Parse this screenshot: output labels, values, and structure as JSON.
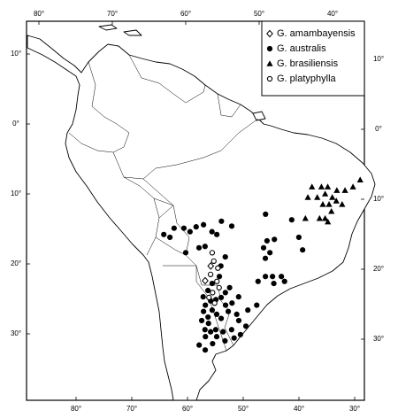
{
  "map": {
    "graticule": {
      "top": [
        {
          "value": -80,
          "label": "80°"
        },
        {
          "value": -70,
          "label": "70°"
        },
        {
          "value": -60,
          "label": "60°"
        },
        {
          "value": -50,
          "label": "50°"
        },
        {
          "value": -40,
          "label": "40°"
        }
      ],
      "bottom": [
        {
          "value": -80,
          "label": "80°"
        },
        {
          "value": -70,
          "label": "70°"
        },
        {
          "value": -60,
          "label": "60°"
        },
        {
          "value": -50,
          "label": "50°"
        },
        {
          "value": -40,
          "label": "40°"
        },
        {
          "value": -30,
          "label": "30°"
        }
      ],
      "left": [
        {
          "value": 10,
          "label": "10°"
        },
        {
          "value": 0,
          "label": "0°"
        },
        {
          "value": -10,
          "label": "10°"
        },
        {
          "value": -20,
          "label": "20°"
        },
        {
          "value": -30,
          "label": "30°"
        }
      ],
      "right": [
        {
          "value": 10,
          "label": "10°"
        },
        {
          "value": 0,
          "label": "0°"
        },
        {
          "value": -10,
          "label": "10°"
        },
        {
          "value": -20,
          "label": "20°"
        },
        {
          "value": -30,
          "label": "30°"
        }
      ]
    },
    "series": [
      {
        "name": "G. amambayensis",
        "marker": "diamond",
        "points": [
          [
            -56.7,
            -22.4
          ],
          [
            -55.8,
            -20.3
          ]
        ]
      },
      {
        "name": "G. australis",
        "marker": "filled-circle",
        "points": [
          [
            -61.9,
            -14.9
          ],
          [
            -60.3,
            -14.9
          ],
          [
            -59.3,
            -15.4
          ],
          [
            -58.3,
            -14.7
          ],
          [
            -57.1,
            -14.4
          ],
          [
            -54.2,
            -13.9
          ],
          [
            -52.5,
            -14.6
          ],
          [
            -47.1,
            -12.9
          ],
          [
            -63.6,
            -15.8
          ],
          [
            -62.6,
            -16.2
          ],
          [
            -57.8,
            -17.7
          ],
          [
            -60,
            -18.4
          ],
          [
            -56.8,
            -17.5
          ],
          [
            -55.7,
            -15.4
          ],
          [
            -54.9,
            -15.8
          ],
          [
            -42.8,
            -13.7
          ],
          [
            -46.6,
            -16.7
          ],
          [
            -45.4,
            -16.5
          ],
          [
            -47.1,
            -17.7
          ],
          [
            -46,
            -18.4
          ],
          [
            -46.7,
            -19.2
          ],
          [
            -41.4,
            -16.2
          ],
          [
            -40.6,
            -18
          ],
          [
            -53.4,
            -19
          ],
          [
            -54.1,
            -20.3
          ],
          [
            -54.3,
            -21.8
          ],
          [
            -55.5,
            -22.8
          ],
          [
            -56.2,
            -23.8
          ],
          [
            -57,
            -24.7
          ],
          [
            -56.6,
            -25.9
          ],
          [
            -55.7,
            -25.3
          ],
          [
            -54.8,
            -25.1
          ],
          [
            -53.9,
            -24.8
          ],
          [
            -53.2,
            -24.1
          ],
          [
            -52.5,
            -23.4
          ],
          [
            -52,
            -25.6
          ],
          [
            -53.1,
            -25.9
          ],
          [
            -55.4,
            -26.6
          ],
          [
            -56.1,
            -27.6
          ],
          [
            -54.6,
            -27.2
          ],
          [
            -53.8,
            -27.8
          ],
          [
            -56.9,
            -26.8
          ],
          [
            -57.2,
            -28.1
          ],
          [
            -56.6,
            -29.4
          ],
          [
            -55.6,
            -29.7
          ],
          [
            -56.5,
            -30.4
          ],
          [
            -57.6,
            -31.6
          ],
          [
            -56.5,
            -32.3
          ],
          [
            -55.2,
            -31.4
          ],
          [
            -54.5,
            -30.4
          ],
          [
            -53.4,
            -29.7
          ],
          [
            -51.9,
            -29.4
          ],
          [
            -50.7,
            -28.1
          ],
          [
            -49.4,
            -28.9
          ],
          [
            -50.3,
            -30.1
          ],
          [
            -51.4,
            -30.6
          ],
          [
            -53,
            -31
          ],
          [
            -49.2,
            -26.6
          ],
          [
            -47.7,
            -25.9
          ],
          [
            -47.7,
            -22.5
          ],
          [
            -46.5,
            -21.8
          ],
          [
            -45.3,
            -21.8
          ],
          [
            -43.8,
            -21.8
          ],
          [
            -43.2,
            -22.5
          ],
          [
            -45,
            -22.8
          ],
          [
            -50.9,
            -24.7
          ],
          [
            -52.6,
            -26.8
          ],
          [
            -51.1,
            -27.2
          ],
          [
            -54.7,
            -29.4
          ],
          [
            -56,
            -28.5
          ]
        ]
      },
      {
        "name": "G. brasiliensis",
        "marker": "triangle",
        "points": [
          [
            -40,
            -9
          ],
          [
            -38.5,
            -9
          ],
          [
            -37.5,
            -9
          ],
          [
            -36,
            -9.5
          ],
          [
            -34.7,
            -9.5
          ],
          [
            -40.5,
            -10.5
          ],
          [
            -39,
            -10.5
          ],
          [
            -37.8,
            -10
          ],
          [
            -36.6,
            -10.5
          ],
          [
            -38,
            -11.5
          ],
          [
            -37,
            -11.5
          ],
          [
            -35.9,
            -11
          ],
          [
            -34.9,
            -11.5
          ],
          [
            -36.5,
            -12.5
          ],
          [
            -37.4,
            -13.5
          ],
          [
            -38.3,
            -13.5
          ],
          [
            -36.9,
            -14
          ],
          [
            -40.6,
            -13.5
          ],
          [
            -32.5,
            -8
          ],
          [
            -33.5,
            -9
          ]
        ]
      },
      {
        "name": "G. platyphylla",
        "marker": "open-circle",
        "points": [
          [
            -55.6,
            -18.4
          ],
          [
            -55.3,
            -19.6
          ],
          [
            -54.6,
            -20.6
          ],
          [
            -55.8,
            -21.5
          ],
          [
            -54.7,
            -22.5
          ],
          [
            -54.3,
            -23.4
          ],
          [
            -55.4,
            -24.1
          ],
          [
            -56,
            -24.8
          ],
          [
            -55,
            -25.6
          ]
        ]
      }
    ]
  }
}
